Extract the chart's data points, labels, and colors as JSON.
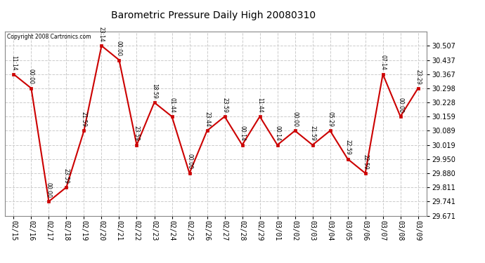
{
  "title": "Barometric Pressure Daily High 20080310",
  "copyright": "Copyright 2008 Cartronics.com",
  "background_color": "#ffffff",
  "plot_bg_color": "#ffffff",
  "grid_color": "#cccccc",
  "line_color": "#cc0000",
  "marker_color": "#cc0000",
  "x_labels": [
    "02/15",
    "02/16",
    "02/17",
    "02/18",
    "02/19",
    "02/20",
    "02/21",
    "02/22",
    "02/23",
    "02/24",
    "02/25",
    "02/26",
    "02/27",
    "02/28",
    "02/29",
    "03/01",
    "03/02",
    "03/03",
    "03/04",
    "03/05",
    "03/06",
    "03/07",
    "03/08",
    "03/09"
  ],
  "y_values": [
    30.367,
    30.298,
    29.741,
    29.811,
    30.089,
    30.507,
    30.437,
    30.019,
    30.228,
    30.159,
    29.88,
    30.089,
    30.159,
    30.019,
    30.159,
    30.019,
    30.089,
    30.019,
    30.089,
    29.95,
    29.88,
    30.367,
    30.159,
    30.298
  ],
  "point_labels": [
    "11:14",
    "00:00",
    "00:00",
    "23:59",
    "21:59",
    "23:14",
    "00:00",
    "23:59",
    "18:59",
    "01:44",
    "00:00",
    "23:44",
    "23:59",
    "00:14",
    "11:44",
    "00:14",
    "00:00",
    "21:59",
    "05:29",
    "22:59",
    "22:59",
    "07:14",
    "00:00",
    "23:29"
  ],
  "ylim_min": 29.671,
  "ylim_max": 30.577,
  "yticks": [
    29.671,
    29.741,
    29.811,
    29.88,
    29.95,
    30.019,
    30.089,
    30.159,
    30.228,
    30.298,
    30.367,
    30.437,
    30.507
  ],
  "title_fontsize": 10,
  "tick_fontsize": 7,
  "label_fontsize": 6
}
